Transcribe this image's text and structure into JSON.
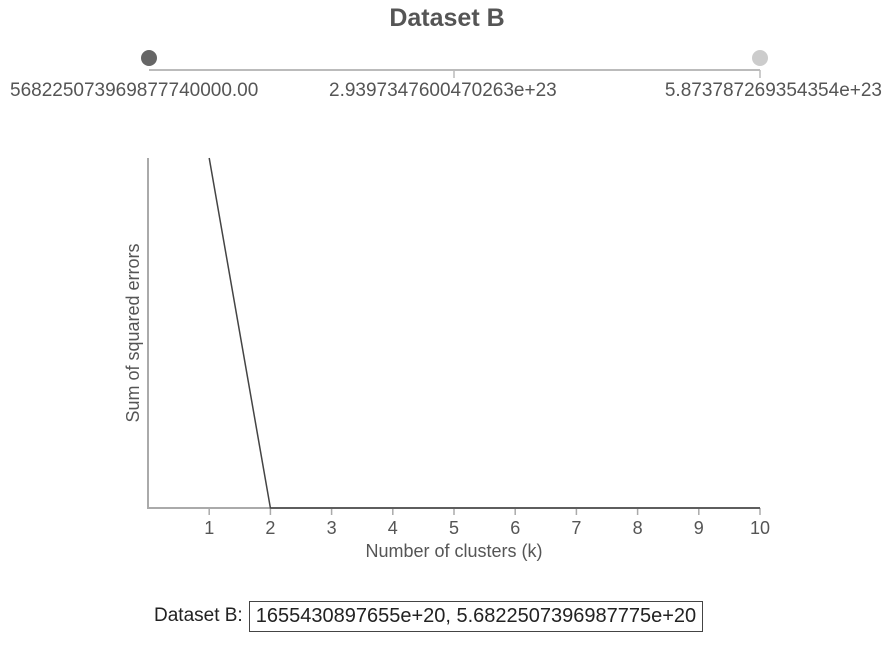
{
  "title": "Dataset B",
  "range_slider": {
    "min_label": "568225073969877740000.00",
    "mid_label": "2.9397347600470263e+23",
    "max_label": "5.873787269354354e+23",
    "handle_colors": {
      "left": "#666666",
      "right": "#cccccc"
    },
    "track_color": "#bbbbbb"
  },
  "chart_data": {
    "type": "line",
    "title": "",
    "xlabel": "Number of clusters (k)",
    "ylabel": "Sum of squared errors",
    "x_ticks": [
      "1",
      "2",
      "3",
      "4",
      "5",
      "6",
      "7",
      "8",
      "9",
      "10"
    ],
    "xlim": [
      0,
      10
    ],
    "grid": false,
    "line_color": "#444444",
    "axis_color": "#aaaaaa",
    "series": [
      {
        "x": [
          1,
          2,
          3,
          4,
          5,
          6,
          7,
          8,
          9,
          10
        ],
        "y_fraction_of_axis": [
          1.0,
          0.0,
          0.0,
          0.0,
          0.0,
          0.0,
          0.0,
          0.0,
          0.0,
          0.0
        ]
      }
    ]
  },
  "footer": {
    "label": "Dataset B:",
    "value": "1655430897655e+20, 5.6822507396987775e+20"
  }
}
